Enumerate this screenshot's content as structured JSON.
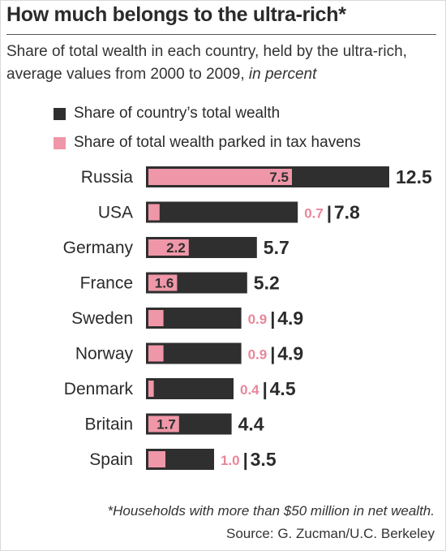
{
  "header": {
    "title": "How much belongs to the ultra-rich*",
    "subtitle_plain": "Share of total wealth in each country, held by the ultra-rich, average values from 2000 to 2009, ",
    "subtitle_italic": "in percent"
  },
  "legend": {
    "total_label": "Share of country’s total wealth",
    "havens_label": "Share of total wealth parked in tax havens"
  },
  "colors": {
    "total": "#2f2f2f",
    "havens": "#ef97a8",
    "havens_text": "#e8879a",
    "label_text": "#2b2b2b"
  },
  "chart_data": {
    "type": "bar",
    "orientation": "horizontal",
    "categories": [
      "Russia",
      "USA",
      "Germany",
      "France",
      "Sweden",
      "Norway",
      "Denmark",
      "Britain",
      "Spain"
    ],
    "series": [
      {
        "name": "Share of country’s total wealth",
        "values": [
          12.5,
          7.8,
          5.7,
          5.2,
          4.9,
          4.9,
          4.5,
          4.4,
          3.5
        ]
      },
      {
        "name": "Share of total wealth parked in tax havens",
        "values": [
          7.5,
          0.7,
          2.2,
          1.6,
          0.9,
          0.9,
          0.4,
          1.7,
          1.0
        ]
      }
    ],
    "havens_labels": [
      "7.5",
      "0.7",
      "2.2",
      "1.6",
      "0.9",
      "0.9",
      "0.4",
      "1.7",
      "1.0"
    ],
    "total_labels": [
      "12.5",
      "7.8",
      "5.7",
      "5.2",
      "4.9",
      "4.9",
      "4.5",
      "4.4",
      "3.5"
    ],
    "havens_label_placement": [
      "inside",
      "outside",
      "inside",
      "inside",
      "outside",
      "outside",
      "outside",
      "inside",
      "outside"
    ],
    "separator": "|",
    "grid": false,
    "legend_position": "top-left"
  },
  "footer": {
    "footnote": "*Households with more than $50 million in net wealth.",
    "source": "Source: G. Zucman/U.C. Berkeley"
  }
}
